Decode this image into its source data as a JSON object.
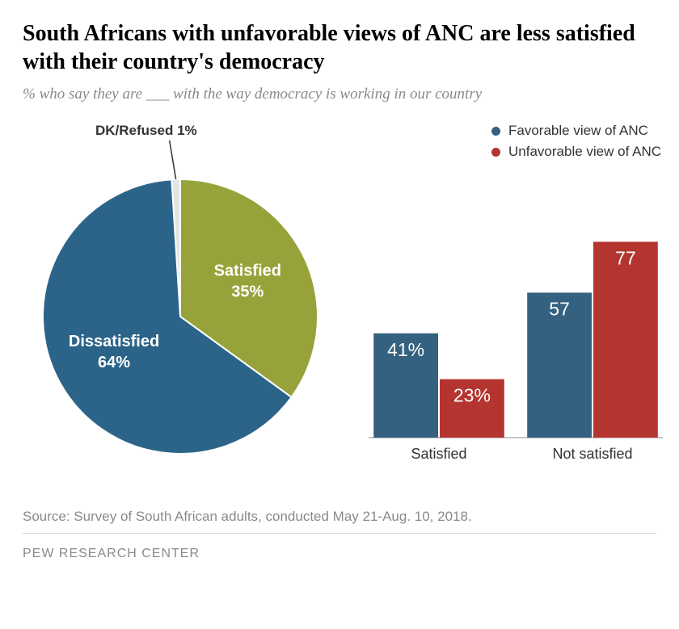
{
  "title": "South Africans with unfavorable views of ANC are less satisfied with their country's democracy",
  "subtitle": "% who say they are ___ with the way democracy is working in our country",
  "pie": {
    "type": "pie",
    "slices": [
      {
        "label": "Dissatisfied",
        "value": 64,
        "display": "64%",
        "color": "#2b6488"
      },
      {
        "label": "Satisfied",
        "value": 35,
        "display": "35%",
        "color": "#97a33a"
      },
      {
        "label": "DK/Refused",
        "value": 1,
        "display": "1%",
        "color": "#e4e4e4"
      }
    ],
    "callout_label": "DK/Refused",
    "callout_value": "1%",
    "background_color": "#ffffff",
    "label_fontsize": 20,
    "label_color_inside": "#ffffff",
    "label_color_outside": "#333333"
  },
  "bars": {
    "type": "bar",
    "categories": [
      "Satisfied",
      "Not satisfied"
    ],
    "series": [
      {
        "name": "Favorable view of ANC",
        "color": "#34617f",
        "values": [
          41,
          57
        ],
        "displays": [
          "41%",
          "57"
        ]
      },
      {
        "name": "Unfavorable view of ANC",
        "color": "#b43530",
        "values": [
          23,
          77
        ],
        "displays": [
          "23%",
          "77"
        ]
      }
    ],
    "ylim": [
      0,
      100
    ],
    "bar_width_ratio": 0.42,
    "value_fontsize": 23,
    "category_fontsize": 18,
    "background_color": "#ffffff",
    "baseline_color": "#c8c8c8"
  },
  "legend": {
    "items": [
      {
        "label": "Favorable view of ANC",
        "color": "#34617f"
      },
      {
        "label": "Unfavorable view of ANC",
        "color": "#b43530"
      }
    ]
  },
  "source": "Source: Survey of South African adults, conducted May 21-Aug. 10, 2018.",
  "footer": "PEW RESEARCH CENTER"
}
